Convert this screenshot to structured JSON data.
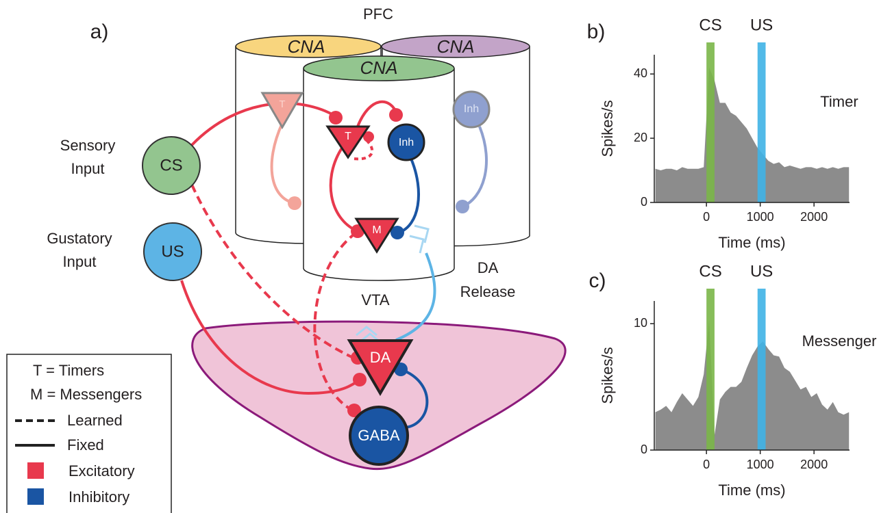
{
  "diagram": {
    "panel_label": "a)",
    "pfc": "PFC",
    "vta": "VTA",
    "da_release": [
      "DA",
      "Release"
    ],
    "cna_labels": [
      "CNA",
      "CNA",
      "CNA"
    ],
    "inputs": [
      {
        "label": [
          "Sensory",
          "Input"
        ],
        "node": "CS"
      },
      {
        "label": [
          "Gustatory",
          "Input"
        ],
        "node": "US"
      }
    ],
    "neurons": {
      "timer": "T",
      "inh": "Inh",
      "messenger": "M",
      "da": "DA",
      "gaba": "GABA",
      "faded_timer": "T",
      "faded_inh": "Inh"
    },
    "legend": {
      "timers": "T = Timers",
      "messengers": "M = Messengers",
      "learned": "Learned",
      "fixed": "Fixed",
      "excitatory": "Excitatory",
      "inhibitory": "Inhibitory"
    }
  },
  "chart_data": [
    {
      "type": "area",
      "label": "b)",
      "title": "Timer",
      "xlabel": "Time (ms)",
      "ylabel": "Spikes/s",
      "color": "#8c8c8c",
      "x": [
        -950,
        -850,
        -750,
        -650,
        -550,
        -450,
        -350,
        -250,
        -150,
        -50,
        50,
        150,
        250,
        350,
        450,
        550,
        650,
        750,
        850,
        950,
        1050,
        1150,
        1250,
        1350,
        1450,
        1550,
        1650,
        1750,
        1850,
        1950,
        2050,
        2150,
        2250,
        2350,
        2450,
        2550,
        2650
      ],
      "values": [
        10.5,
        10,
        10.5,
        10.5,
        10,
        11,
        10.5,
        10.5,
        10.5,
        11,
        42,
        38,
        31,
        31,
        28,
        27,
        25,
        23,
        20,
        17,
        15,
        13,
        12,
        12.5,
        11,
        11.5,
        11,
        10.5,
        11,
        11,
        10.5,
        11,
        10.5,
        11,
        10.5,
        11,
        11
      ],
      "xlim": [
        -970,
        2660
      ],
      "ylim": [
        0,
        46
      ],
      "xticks": [
        0,
        1000,
        2000
      ],
      "yticks": [
        0,
        20,
        40
      ],
      "shaded_regions": [
        {
          "label": "CS",
          "range": [
            0,
            150
          ],
          "color": "#7ab648"
        },
        {
          "label": "US",
          "range": [
            950,
            1100
          ],
          "color": "#3fb3e6"
        }
      ]
    },
    {
      "type": "area",
      "label": "c)",
      "title": "Messenger",
      "xlabel": "Time (ms)",
      "ylabel": "Spikes/s",
      "color": "#8c8c8c",
      "x": [
        -950,
        -850,
        -750,
        -650,
        -550,
        -450,
        -350,
        -250,
        -150,
        -50,
        50,
        150,
        250,
        350,
        450,
        550,
        650,
        750,
        850,
        950,
        1050,
        1150,
        1250,
        1350,
        1450,
        1550,
        1650,
        1750,
        1850,
        1950,
        2050,
        2150,
        2250,
        2350,
        2450,
        2550,
        2650
      ],
      "values": [
        3,
        3.2,
        3.5,
        3,
        3.8,
        4.5,
        4,
        3.5,
        4.2,
        6,
        10.3,
        1.2,
        4,
        4.6,
        5,
        5,
        5.4,
        6.5,
        7.5,
        8.2,
        8.6,
        8,
        7.5,
        7.4,
        6.5,
        6.2,
        5.5,
        4.8,
        5,
        4.2,
        4.5,
        3.6,
        3.2,
        3.8,
        3,
        2.8,
        3
      ],
      "xlim": [
        -970,
        2660
      ],
      "ylim": [
        0,
        11.8
      ],
      "xticks": [
        0,
        1000,
        2000
      ],
      "yticks": [
        0,
        10
      ],
      "shaded_regions": [
        {
          "label": "CS",
          "range": [
            0,
            150
          ],
          "color": "#7ab648"
        },
        {
          "label": "US",
          "range": [
            950,
            1100
          ],
          "color": "#3fb3e6"
        }
      ]
    }
  ]
}
